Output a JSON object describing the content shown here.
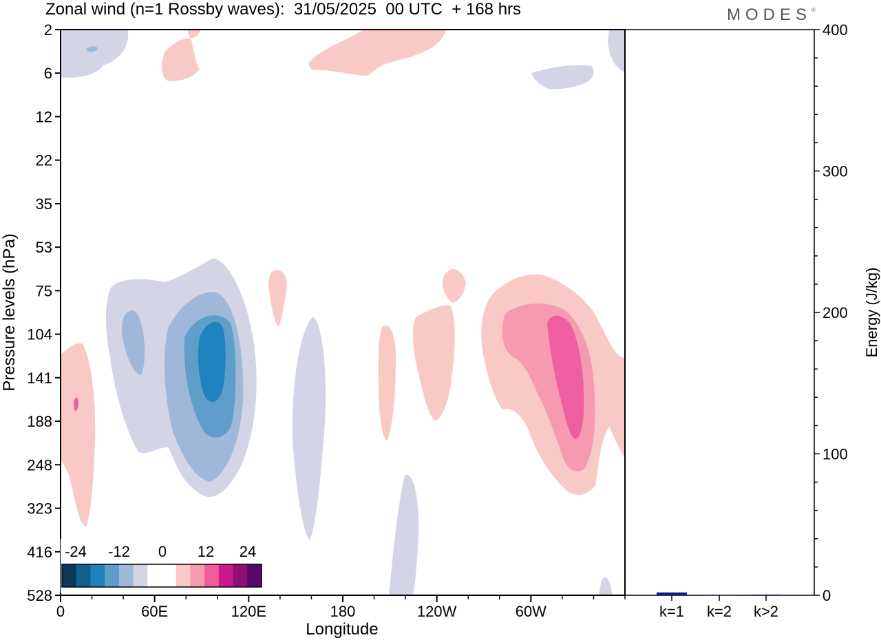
{
  "title": "Zonal wind (n=1 Rossby waves):  31/05/2025  00 UTC  + 168 hrs",
  "logo": "MODES",
  "logo_mark": "®",
  "chart_data": [
    {
      "type": "heatmap",
      "xlabel": "Longitude",
      "ylabel": "Pressure levels (hPa)",
      "x_ticks": [
        "0",
        "60E",
        "120E",
        "180",
        "120W",
        "60W"
      ],
      "x_tick_lons": [
        0,
        60,
        120,
        180,
        240,
        300
      ],
      "xlim": [
        0,
        360
      ],
      "y_ticks": [
        "2",
        "6",
        "12",
        "22",
        "35",
        "53",
        "75",
        "104",
        "141",
        "188",
        "248",
        "323",
        "416",
        "528"
      ],
      "colorbar": {
        "tick_labels": [
          "-24",
          "-12",
          "0",
          "12",
          "24"
        ],
        "colors": [
          "#0d3a5a",
          "#135f8f",
          "#2081bd",
          "#5f9ecb",
          "#9fb7d8",
          "#d3d4e6",
          "#ffffff",
          "#ffffff",
          "#f9c9c6",
          "#f69ab2",
          "#ee5c9c",
          "#c9198c",
          "#8e1075",
          "#560869"
        ]
      },
      "color_hex": {
        "negative": "#1f83be",
        "positive": "#ef5e9e"
      }
    },
    {
      "type": "bar",
      "categories": [
        "k=1",
        "k=2",
        "k>2"
      ],
      "values": [
        2,
        0,
        0.5
      ],
      "ylabel": "Energy (J/kg)",
      "ylim": [
        0,
        400
      ],
      "y_ticks": [
        "0",
        "100",
        "200",
        "300",
        "400"
      ],
      "bar_color": "#0a1f8f"
    }
  ]
}
